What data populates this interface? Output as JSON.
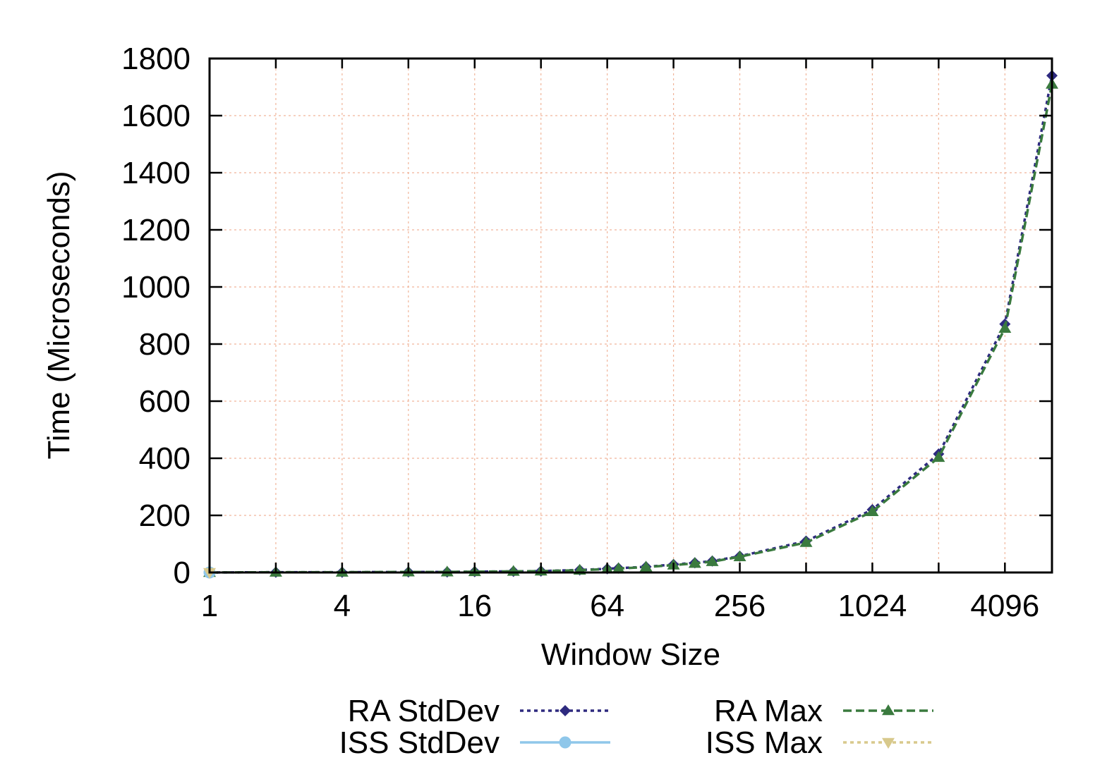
{
  "chart_data": {
    "type": "line",
    "title": "",
    "xlabel": "Window Size",
    "ylabel": "Time (Microseconds)",
    "xscale": "log2",
    "xlim": [
      1,
      6700
    ],
    "ylim": [
      0,
      1800
    ],
    "xticks": [
      1,
      4,
      16,
      64,
      256,
      1024,
      4096
    ],
    "xtick_labels": [
      "1",
      "4",
      "16",
      "64",
      "256",
      "1024",
      "4096"
    ],
    "xticks_minor": [
      2,
      8,
      32,
      128,
      512,
      2048
    ],
    "yticks": [
      0,
      200,
      400,
      600,
      800,
      1000,
      1200,
      1400,
      1600,
      1800
    ],
    "ytick_labels": [
      "0",
      "200",
      "400",
      "600",
      "800",
      "1000",
      "1200",
      "1400",
      "1600",
      "1800"
    ],
    "grid": true,
    "legend_position": "bottom",
    "series": [
      {
        "name": "RA StdDev",
        "color": "#2e2a7f",
        "line_style": "dotted",
        "marker": "diamond",
        "x": [
          1,
          2,
          4,
          8,
          12,
          16,
          24,
          32,
          48,
          64,
          72,
          96,
          128,
          160,
          192,
          256,
          512,
          1024,
          2048,
          4096,
          6700
        ],
        "y": [
          0,
          1,
          1,
          2,
          2,
          3,
          4,
          5,
          9,
          13,
          15,
          20,
          28,
          34,
          40,
          57,
          110,
          220,
          415,
          870,
          1740
        ]
      },
      {
        "name": "ISS StdDev",
        "color": "#8fc7ea",
        "line_style": "solid",
        "marker": "circle",
        "x": [
          1
        ],
        "y": [
          0
        ]
      },
      {
        "name": "RA Max",
        "color": "#3a7a3e",
        "line_style": "dashed",
        "marker": "triangle-up",
        "x": [
          1,
          2,
          4,
          8,
          12,
          16,
          24,
          32,
          48,
          64,
          72,
          96,
          128,
          160,
          192,
          256,
          512,
          1024,
          2048,
          4096,
          6700
        ],
        "y": [
          0,
          1,
          1,
          2,
          2,
          3,
          4,
          5,
          8,
          12,
          14,
          19,
          26,
          32,
          38,
          55,
          105,
          213,
          403,
          855,
          1710
        ]
      },
      {
        "name": "ISS Max",
        "color": "#d8c98c",
        "line_style": "dotted",
        "marker": "triangle-down",
        "x": [
          1
        ],
        "y": [
          0
        ]
      }
    ]
  }
}
